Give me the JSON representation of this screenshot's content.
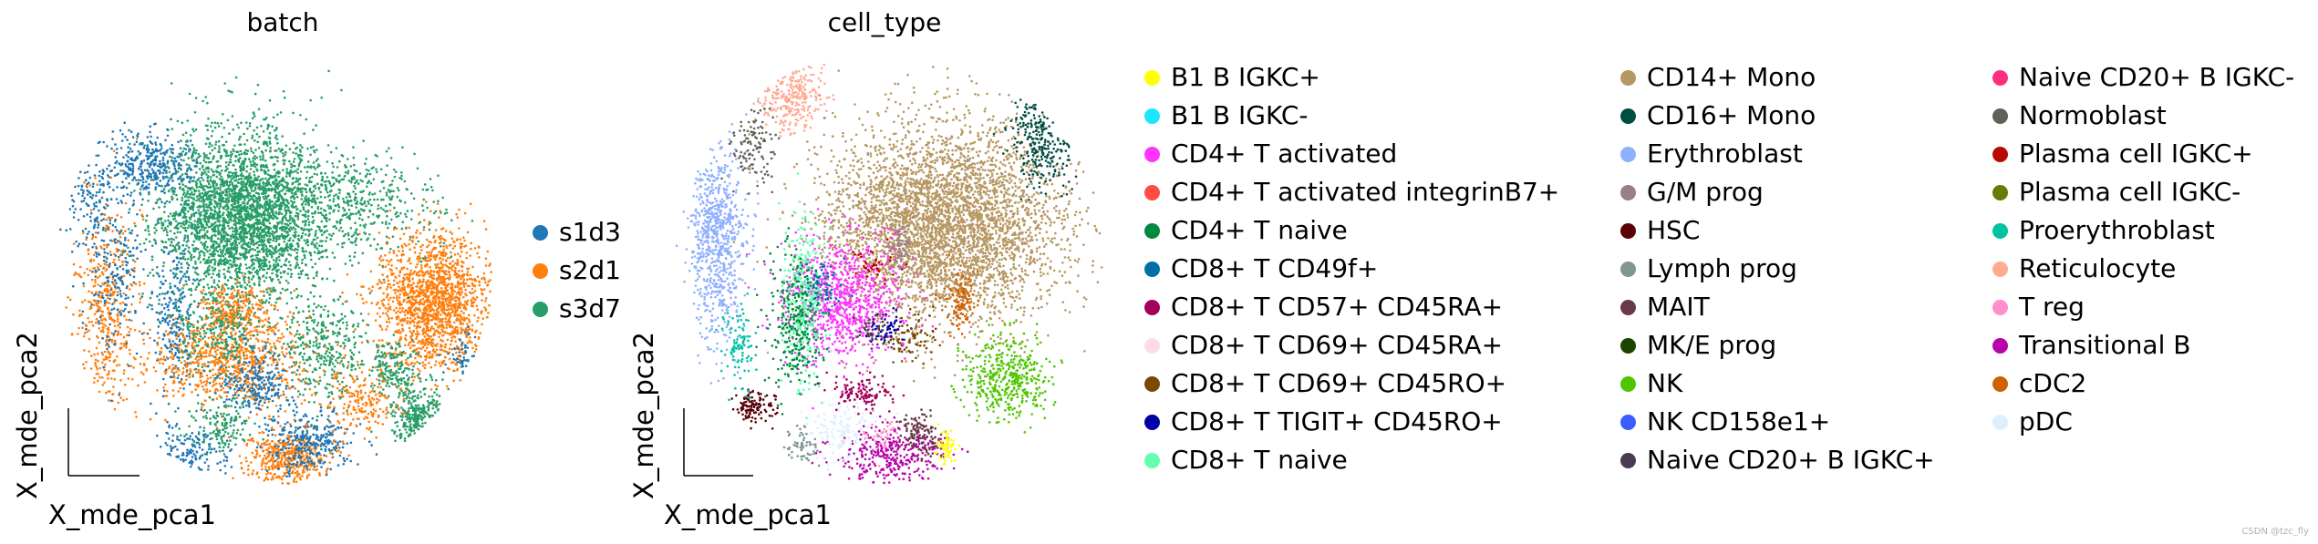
{
  "chart_data": [
    {
      "type": "scatter",
      "title": "batch",
      "xlabel": "X_mde_pca1",
      "ylabel": "X_mde_pca2",
      "legend_position": "right",
      "legend": [
        {
          "label": "s1d3",
          "color": "#1f77b4"
        },
        {
          "label": "s2d1",
          "color": "#ff7f0e"
        },
        {
          "label": "s3d7",
          "color": "#279e68"
        }
      ],
      "clusters": [
        {
          "name": "s3d7",
          "cx": 0.42,
          "cy": 0.62,
          "sx": 0.1,
          "sy": 0.1,
          "n": 3200
        },
        {
          "name": "s2d1",
          "cx": 0.88,
          "cy": 0.42,
          "sx": 0.065,
          "sy": 0.08,
          "n": 1600
        },
        {
          "name": "s3d7",
          "cx": 0.7,
          "cy": 0.64,
          "sx": 0.1,
          "sy": 0.06,
          "n": 450
        },
        {
          "name": "s1d3",
          "cx": 0.06,
          "cy": 0.66,
          "sx": 0.035,
          "sy": 0.05,
          "n": 150
        },
        {
          "name": "s1d3",
          "cx": 0.2,
          "cy": 0.74,
          "sx": 0.05,
          "sy": 0.04,
          "n": 350
        },
        {
          "name": "s2d1",
          "cx": 0.1,
          "cy": 0.4,
          "sx": 0.04,
          "sy": 0.13,
          "n": 450
        },
        {
          "name": "s1d3",
          "cx": 0.12,
          "cy": 0.48,
          "sx": 0.035,
          "sy": 0.1,
          "n": 200
        },
        {
          "name": "s1d3",
          "cx": 0.26,
          "cy": 0.38,
          "sx": 0.025,
          "sy": 0.09,
          "n": 250
        },
        {
          "name": "s2d1",
          "cx": 0.39,
          "cy": 0.28,
          "sx": 0.09,
          "sy": 0.06,
          "n": 850
        },
        {
          "name": "s3d7",
          "cx": 0.36,
          "cy": 0.35,
          "sx": 0.06,
          "sy": 0.05,
          "n": 280
        },
        {
          "name": "s1d3",
          "cx": 0.45,
          "cy": 0.22,
          "sx": 0.04,
          "sy": 0.04,
          "n": 250
        },
        {
          "name": "s3d7",
          "cx": 0.62,
          "cy": 0.3,
          "sx": 0.05,
          "sy": 0.06,
          "n": 320
        },
        {
          "name": "s2d1",
          "cx": 0.53,
          "cy": 0.04,
          "sx": 0.05,
          "sy": 0.035,
          "n": 450
        },
        {
          "name": "s1d3",
          "cx": 0.58,
          "cy": 0.08,
          "sx": 0.05,
          "sy": 0.035,
          "n": 320
        },
        {
          "name": "s3d7",
          "cx": 0.84,
          "cy": 0.14,
          "sx": 0.035,
          "sy": 0.045,
          "n": 420
        },
        {
          "name": "s3d7",
          "cx": 0.78,
          "cy": 0.26,
          "sx": 0.03,
          "sy": 0.03,
          "n": 160
        },
        {
          "name": "s2d1",
          "cx": 0.7,
          "cy": 0.18,
          "sx": 0.05,
          "sy": 0.04,
          "n": 200
        },
        {
          "name": "s1d3",
          "cx": 0.3,
          "cy": 0.05,
          "sx": 0.05,
          "sy": 0.035,
          "n": 200
        },
        {
          "name": "s3d7",
          "cx": 0.37,
          "cy": 0.12,
          "sx": 0.04,
          "sy": 0.035,
          "n": 150
        },
        {
          "name": "s2d1",
          "cx": 0.4,
          "cy": 0.4,
          "sx": 0.04,
          "sy": 0.03,
          "n": 180
        },
        {
          "name": "s1d3",
          "cx": 0.95,
          "cy": 0.28,
          "sx": 0.02,
          "sy": 0.03,
          "n": 60
        }
      ]
    },
    {
      "type": "scatter",
      "title": "cell_type",
      "xlabel": "X_mde_pca1",
      "ylabel": "X_mde_pca2",
      "legend_position": "right",
      "legend": [
        {
          "label": "B1 B IGKC+",
          "color": "#ffff00"
        },
        {
          "label": "B1 B IGKC-",
          "color": "#1ce6ff"
        },
        {
          "label": "CD4+ T activated",
          "color": "#ff34ff"
        },
        {
          "label": "CD4+ T activated integrinB7+",
          "color": "#ff4a46"
        },
        {
          "label": "CD4+ T naive",
          "color": "#008941"
        },
        {
          "label": "CD8+ T CD49f+",
          "color": "#006fa6"
        },
        {
          "label": "CD8+ T CD57+ CD45RA+",
          "color": "#a30059"
        },
        {
          "label": "CD8+ T CD69+ CD45RA+",
          "color": "#ffdbe5"
        },
        {
          "label": "CD8+ T CD69+ CD45RO+",
          "color": "#7a4900"
        },
        {
          "label": "CD8+ T TIGIT+ CD45RO+",
          "color": "#0000a6"
        },
        {
          "label": "CD8+ T naive",
          "color": "#63ffac"
        },
        {
          "label": "CD14+ Mono",
          "color": "#b79762"
        },
        {
          "label": "CD16+ Mono",
          "color": "#004d43"
        },
        {
          "label": "Erythroblast",
          "color": "#8fb0ff"
        },
        {
          "label": "G/M prog",
          "color": "#997d87"
        },
        {
          "label": "HSC",
          "color": "#5a0007"
        },
        {
          "label": "Lymph prog",
          "color": "#809693"
        },
        {
          "label": "MAIT",
          "color": "#6a3a4c"
        },
        {
          "label": "MK/E prog",
          "color": "#1b4400"
        },
        {
          "label": "NK",
          "color": "#4fc601"
        },
        {
          "label": "NK CD158e1+",
          "color": "#3b5dff"
        },
        {
          "label": "Naive CD20+ B IGKC+",
          "color": "#4a3b53"
        },
        {
          "label": "Naive CD20+ B IGKC-",
          "color": "#ff2f80"
        },
        {
          "label": "Normoblast",
          "color": "#61615a"
        },
        {
          "label": "Plasma cell IGKC+",
          "color": "#ba0900"
        },
        {
          "label": "Plasma cell IGKC-",
          "color": "#6b7900"
        },
        {
          "label": "Proerythroblast",
          "color": "#00c2a0"
        },
        {
          "label": "Reticulocyte",
          "color": "#ffaa92"
        },
        {
          "label": "T reg",
          "color": "#ff90c9"
        },
        {
          "label": "Transitional B",
          "color": "#b903aa"
        },
        {
          "label": "cDC2",
          "color": "#d16100"
        },
        {
          "label": "pDC",
          "color": "#ddefff"
        }
      ],
      "clusters": [
        {
          "name": "CD14+ Mono",
          "cx": 0.63,
          "cy": 0.6,
          "sx": 0.14,
          "sy": 0.12,
          "n": 4200
        },
        {
          "name": "CD16+ Mono",
          "cx": 0.86,
          "cy": 0.8,
          "sx": 0.04,
          "sy": 0.06,
          "n": 300
        },
        {
          "name": "Erythroblast",
          "cx": 0.08,
          "cy": 0.56,
          "sx": 0.035,
          "sy": 0.12,
          "n": 800
        },
        {
          "name": "Reticulocyte",
          "cx": 0.26,
          "cy": 0.9,
          "sx": 0.04,
          "sy": 0.04,
          "n": 300
        },
        {
          "name": "Normoblast",
          "cx": 0.17,
          "cy": 0.78,
          "sx": 0.03,
          "sy": 0.05,
          "n": 120
        },
        {
          "name": "CD4+ T activated",
          "cx": 0.38,
          "cy": 0.42,
          "sx": 0.07,
          "sy": 0.07,
          "n": 900
        },
        {
          "name": "CD8+ T naive",
          "cx": 0.29,
          "cy": 0.42,
          "sx": 0.025,
          "sy": 0.1,
          "n": 350
        },
        {
          "name": "CD4+ T naive",
          "cx": 0.27,
          "cy": 0.36,
          "sx": 0.03,
          "sy": 0.08,
          "n": 300
        },
        {
          "name": "NK",
          "cx": 0.78,
          "cy": 0.23,
          "sx": 0.05,
          "sy": 0.05,
          "n": 450
        },
        {
          "name": "cDC2",
          "cx": 0.67,
          "cy": 0.42,
          "sx": 0.02,
          "sy": 0.04,
          "n": 120
        },
        {
          "name": "Transitional B",
          "cx": 0.5,
          "cy": 0.05,
          "sx": 0.07,
          "sy": 0.035,
          "n": 350
        },
        {
          "name": "MAIT",
          "cx": 0.57,
          "cy": 0.1,
          "sx": 0.025,
          "sy": 0.03,
          "n": 120
        },
        {
          "name": "pDC",
          "cx": 0.38,
          "cy": 0.1,
          "sx": 0.04,
          "sy": 0.04,
          "n": 150
        },
        {
          "name": "HSC",
          "cx": 0.17,
          "cy": 0.16,
          "sx": 0.025,
          "sy": 0.02,
          "n": 120
        },
        {
          "name": "Proerythroblast",
          "cx": 0.13,
          "cy": 0.3,
          "sx": 0.02,
          "sy": 0.05,
          "n": 100
        },
        {
          "name": "CD8+ T CD57+ CD45RA+",
          "cx": 0.43,
          "cy": 0.2,
          "sx": 0.04,
          "sy": 0.02,
          "n": 120
        },
        {
          "name": "B1 B IGKC+",
          "cx": 0.63,
          "cy": 0.07,
          "sx": 0.012,
          "sy": 0.02,
          "n": 60
        },
        {
          "name": "Lymph prog",
          "cx": 0.28,
          "cy": 0.07,
          "sx": 0.02,
          "sy": 0.02,
          "n": 60
        },
        {
          "name": "G/M prog",
          "cx": 0.52,
          "cy": 0.55,
          "sx": 0.015,
          "sy": 0.03,
          "n": 60
        },
        {
          "name": "CD8+ T CD69+ CD45RO+",
          "cx": 0.55,
          "cy": 0.32,
          "sx": 0.03,
          "sy": 0.03,
          "n": 70
        },
        {
          "name": "Plasma cell IGKC+",
          "cx": 0.46,
          "cy": 0.5,
          "sx": 0.03,
          "sy": 0.02,
          "n": 40
        },
        {
          "name": "CD8+ T CD49f+",
          "cx": 0.33,
          "cy": 0.46,
          "sx": 0.03,
          "sy": 0.03,
          "n": 60
        },
        {
          "name": "Naive CD20+ B IGKC+",
          "cx": 0.47,
          "cy": 0.34,
          "sx": 0.03,
          "sy": 0.02,
          "n": 60
        },
        {
          "name": "CD8+ T TIGIT+ CD45RO+",
          "cx": 0.49,
          "cy": 0.36,
          "sx": 0.02,
          "sy": 0.02,
          "n": 40
        },
        {
          "name": "T reg",
          "cx": 0.48,
          "cy": 0.1,
          "sx": 0.02,
          "sy": 0.02,
          "n": 40
        }
      ]
    }
  ],
  "watermark": "CSDN @tzc_fly"
}
